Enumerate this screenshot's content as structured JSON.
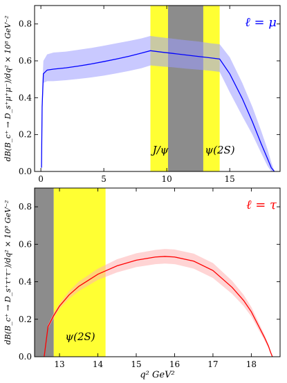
{
  "chart_data": [
    {
      "type": "line",
      "legend": "ℓ = μ",
      "legend_color": "#0000ff",
      "ylabel": "dB(B_c⁺ → D_s⁺μ⁺μ⁻)/dq² × 10⁸ GeV⁻²",
      "xlabel": "",
      "xlim": [
        -0.5,
        19.0
      ],
      "ylim": [
        0,
        0.9
      ],
      "xticks": [
        "0",
        "5",
        "10",
        "15"
      ],
      "xtick_values": [
        0,
        5,
        10,
        15
      ],
      "yticks": [
        "0.0",
        "0.2",
        "0.4",
        "0.6",
        "0.8"
      ],
      "ytick_values": [
        0,
        0.2,
        0.4,
        0.6,
        0.8
      ],
      "line_color": "#0000ff",
      "band_color": "#9c9cff",
      "regions": [
        {
          "x0": 8.7,
          "x1": 10.1,
          "color": "#ffff33",
          "label": "J/ψ"
        },
        {
          "x0": 10.1,
          "x1": 12.9,
          "color": "#8c8c8c",
          "label": ""
        },
        {
          "x0": 12.9,
          "x1": 14.2,
          "color": "#ffff33",
          "label": "ψ(2S)"
        }
      ],
      "series": [
        {
          "x": [
            0.05,
            0.1,
            0.2,
            0.5,
            1,
            2,
            3,
            4,
            5,
            6,
            7,
            8,
            8.7,
            9.5,
            10.5,
            11.5,
            12.5,
            13.5,
            14.2,
            15,
            16,
            16.8,
            17.5,
            18.0,
            18.3,
            18.55
          ],
          "y": [
            0.02,
            0.35,
            0.53,
            0.55,
            0.555,
            0.562,
            0.572,
            0.583,
            0.596,
            0.61,
            0.625,
            0.642,
            0.655,
            0.648,
            0.64,
            0.632,
            0.624,
            0.616,
            0.61,
            0.53,
            0.395,
            0.27,
            0.15,
            0.07,
            0.02,
            0.0
          ],
          "upper": [
            0.03,
            0.44,
            0.6,
            0.635,
            0.645,
            0.65,
            0.66,
            0.67,
            0.682,
            0.695,
            0.708,
            0.722,
            0.735,
            0.728,
            0.72,
            0.712,
            0.705,
            0.695,
            0.69,
            0.62,
            0.48,
            0.35,
            0.22,
            0.12,
            0.05,
            0.0
          ],
          "lower": [
            0.01,
            0.28,
            0.48,
            0.49,
            0.49,
            0.495,
            0.502,
            0.51,
            0.52,
            0.532,
            0.545,
            0.56,
            0.575,
            0.57,
            0.565,
            0.558,
            0.552,
            0.546,
            0.54,
            0.43,
            0.3,
            0.2,
            0.1,
            0.03,
            0.0,
            0.0
          ]
        }
      ]
    },
    {
      "type": "line",
      "legend": "ℓ = τ",
      "legend_color": "#ff0000",
      "ylabel": "dB(B_c⁺ → D_s⁺τ⁺τ⁻)/dq² × 10⁸ GeV⁻²",
      "xlabel": "q² GeV²",
      "xlim": [
        12.35,
        18.75
      ],
      "ylim": [
        0,
        0.9
      ],
      "xticks": [
        "13",
        "14",
        "15",
        "16",
        "17",
        "18"
      ],
      "xtick_values": [
        13,
        14,
        15,
        16,
        17,
        18
      ],
      "yticks": [
        "0.0",
        "0.2",
        "0.4",
        "0.6",
        "0.8"
      ],
      "ytick_values": [
        0,
        0.2,
        0.4,
        0.6,
        0.8
      ],
      "line_color": "#ff0000",
      "band_color": "#ffb0b0",
      "regions": [
        {
          "x0": 12.35,
          "x1": 12.85,
          "color": "#8c8c8c",
          "label": ""
        },
        {
          "x0": 12.85,
          "x1": 14.2,
          "color": "#ffff33",
          "label": "ψ(2S)"
        }
      ],
      "series": [
        {
          "x": [
            12.6,
            12.7,
            12.85,
            13.0,
            13.25,
            13.5,
            14.0,
            14.5,
            15.0,
            15.5,
            15.75,
            16.0,
            16.5,
            17.0,
            17.5,
            17.8,
            18.0,
            18.2,
            18.35,
            18.45,
            18.5,
            18.55
          ],
          "y": [
            0.0,
            0.16,
            0.22,
            0.27,
            0.33,
            0.375,
            0.44,
            0.485,
            0.515,
            0.532,
            0.535,
            0.532,
            0.51,
            0.46,
            0.37,
            0.3,
            0.24,
            0.16,
            0.1,
            0.055,
            0.025,
            0.0
          ],
          "upper": [
            0.0,
            0.17,
            0.235,
            0.285,
            0.35,
            0.4,
            0.47,
            0.52,
            0.552,
            0.57,
            0.575,
            0.572,
            0.55,
            0.5,
            0.405,
            0.33,
            0.265,
            0.18,
            0.115,
            0.065,
            0.03,
            0.0
          ],
          "lower": [
            0.0,
            0.15,
            0.205,
            0.255,
            0.31,
            0.35,
            0.41,
            0.45,
            0.478,
            0.494,
            0.497,
            0.494,
            0.47,
            0.42,
            0.335,
            0.27,
            0.215,
            0.14,
            0.085,
            0.045,
            0.02,
            0.0
          ]
        }
      ]
    }
  ]
}
